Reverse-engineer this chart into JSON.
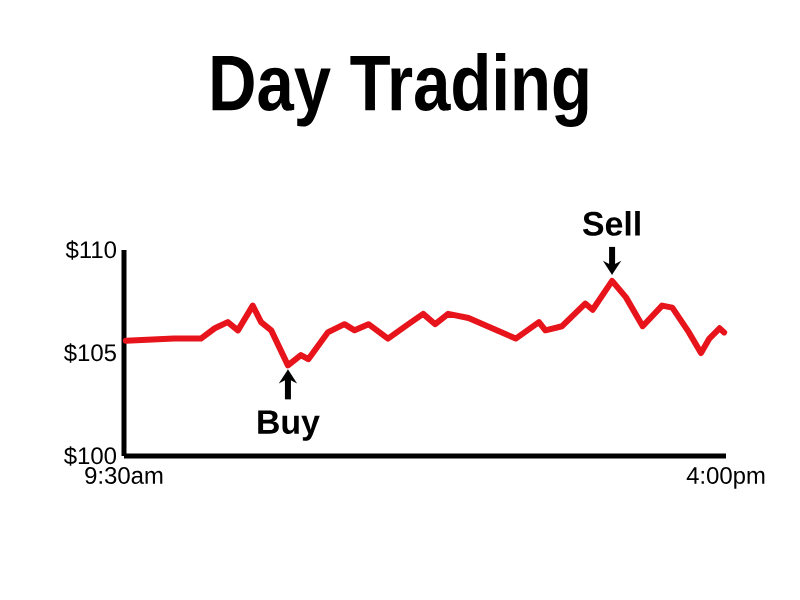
{
  "chart_data": {
    "type": "line",
    "title": "Day Trading",
    "x": [
      9.52,
      10.04,
      10.33,
      10.48,
      10.62,
      10.73,
      10.89,
      10.98,
      11.09,
      11.27,
      11.41,
      11.49,
      11.7,
      11.88,
      11.99,
      12.14,
      12.35,
      12.57,
      12.73,
      12.86,
      13.0,
      13.22,
      13.73,
      13.98,
      14.05,
      14.23,
      14.48,
      14.56,
      14.77,
      14.92,
      15.1,
      15.31,
      15.42,
      15.6,
      15.73,
      15.82,
      15.93,
      15.98
    ],
    "values": [
      105.6,
      105.7,
      105.7,
      106.2,
      106.5,
      106.1,
      107.3,
      106.5,
      106.1,
      104.4,
      104.9,
      104.7,
      106.0,
      106.4,
      106.1,
      106.4,
      105.7,
      106.4,
      106.9,
      106.4,
      106.9,
      106.7,
      105.7,
      106.5,
      106.1,
      106.3,
      107.4,
      107.1,
      108.5,
      107.7,
      106.3,
      107.3,
      107.2,
      106.0,
      105.0,
      105.7,
      106.2,
      106.0
    ],
    "color": "#e8141b",
    "marker": "none",
    "line_style": "solid",
    "xlim": [
      9.5,
      16
    ],
    "ylim": [
      100,
      110
    ],
    "xticks": [
      {
        "value": 9.5,
        "label": "9:30am"
      },
      {
        "value": 16,
        "label": "4:00pm"
      }
    ],
    "yticks": [
      {
        "value": 100,
        "label": "$100"
      },
      {
        "value": 105,
        "label": "$105"
      },
      {
        "value": 110,
        "label": "$110"
      }
    ],
    "annotations": [
      {
        "text": "Buy",
        "x": 11.27,
        "y": 104.4
      },
      {
        "text": "Sell",
        "x": 14.77,
        "y": 108.5
      }
    ]
  }
}
